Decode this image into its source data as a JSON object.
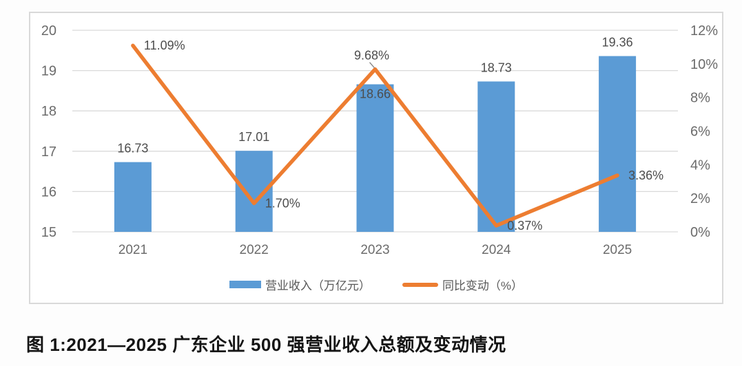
{
  "figure": {
    "caption": "图 1:2021—2025 广东企业 500 强营业收入总额及变动情况"
  },
  "chart_data": {
    "type": "combo-bar-line",
    "categories": [
      "2021",
      "2022",
      "2023",
      "2024",
      "2025"
    ],
    "series": [
      {
        "name": "营业收入（万亿元）",
        "chart_type": "bar",
        "axis": "left",
        "values": [
          16.73,
          17.01,
          18.66,
          18.73,
          19.36
        ],
        "labels": [
          "16.73",
          "17.01",
          "18.66",
          "18.73",
          "19.36"
        ],
        "color": "#5B9BD5"
      },
      {
        "name": "同比变动（%）",
        "chart_type": "line",
        "axis": "right",
        "values": [
          11.09,
          1.7,
          9.68,
          0.37,
          3.36
        ],
        "labels": [
          "11.09%",
          "1.70%",
          "9.68%",
          "0.37%",
          "3.36%"
        ],
        "color": "#ED7D31"
      }
    ],
    "axes": {
      "left": {
        "min": 15,
        "max": 20,
        "ticks": [
          "20",
          "19",
          "18",
          "17",
          "16",
          "15"
        ]
      },
      "right": {
        "min": 0,
        "max": 12,
        "ticks": [
          "12%",
          "10%",
          "8%",
          "6%",
          "4%",
          "2%",
          "0%"
        ]
      }
    },
    "layout_hints": {
      "grid": true,
      "legend_position": "bottom-inside",
      "bar_label_positions": [
        "above",
        "above",
        "inside",
        "above",
        "above"
      ],
      "line_label_positions": [
        "right",
        "right",
        "above-leader",
        "right",
        "right"
      ]
    },
    "colors": {
      "grid": "#D9D9D9",
      "frame_border": "#D9D9D9",
      "tick_text": "#6B6B6B",
      "label_text": "#4D4D4D",
      "leader_line": "#8A8A8A"
    }
  }
}
